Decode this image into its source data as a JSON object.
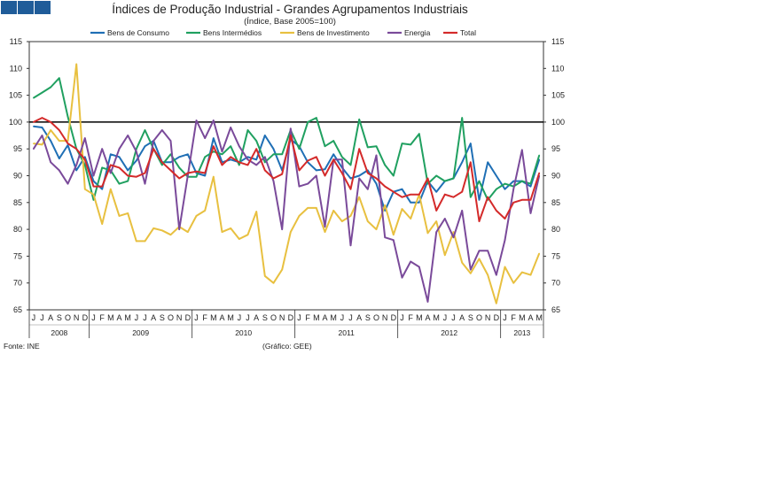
{
  "header": {
    "logo_blocks": [
      "logo-block-1",
      "logo-block-2",
      "logo-block-3"
    ],
    "logo_color": "#1f5c99"
  },
  "notes": {
    "source": "Fonte: INE",
    "graph_credit": "(Gráfico: GEE)"
  },
  "chart_data": {
    "type": "line",
    "title": "Índices de Produção Industrial - Grandes Agrupamentos Industriais",
    "subtitle": "(Índice, Base 2005=100)",
    "xlabel": "",
    "ylabel": "",
    "ylim": [
      65,
      115
    ],
    "yticks": [
      65,
      70,
      75,
      80,
      85,
      90,
      95,
      100,
      105,
      110,
      115
    ],
    "reference_line": 100,
    "legend_position": "top",
    "x": [
      "J",
      "J",
      "A",
      "S",
      "O",
      "N",
      "D",
      "J",
      "F",
      "M",
      "A",
      "M",
      "J",
      "J",
      "A",
      "S",
      "O",
      "N",
      "D",
      "J",
      "F",
      "M",
      "A",
      "M",
      "J",
      "J",
      "A",
      "S",
      "O",
      "N",
      "D",
      "J",
      "F",
      "M",
      "A",
      "M",
      "J",
      "J",
      "A",
      "S",
      "O",
      "N",
      "D",
      "J",
      "F",
      "M",
      "A",
      "M",
      "J",
      "J",
      "A",
      "S",
      "O",
      "N",
      "D",
      "J",
      "F",
      "M",
      "A",
      "M"
    ],
    "years": [
      {
        "label": "2008",
        "start": 0,
        "end": 6
      },
      {
        "label": "2009",
        "start": 7,
        "end": 18
      },
      {
        "label": "2010",
        "start": 19,
        "end": 30
      },
      {
        "label": "2011",
        "start": 31,
        "end": 42
      },
      {
        "label": "2012",
        "start": 43,
        "end": 54
      },
      {
        "label": "2013",
        "start": 55,
        "end": 59
      }
    ],
    "series": [
      {
        "name": "Bens de Consumo",
        "color": "#1f6fb5",
        "values": [
          99.2,
          99,
          96.5,
          93.2,
          95.7,
          91,
          93.5,
          89,
          87.5,
          94,
          93.5,
          91,
          92.8,
          95.5,
          96.5,
          92.5,
          92.5,
          93.5,
          94,
          90.5,
          90,
          97,
          92.5,
          93,
          92.5,
          93.5,
          93,
          97.5,
          95,
          91,
          96.8,
          95.5,
          92.5,
          91,
          91.2,
          94,
          91.5,
          89.5,
          90,
          91,
          88.5,
          83.5,
          87,
          87.5,
          85,
          85,
          89,
          87,
          89,
          89.5,
          92.5,
          96,
          85.5,
          92.5,
          90,
          87.5,
          89,
          89,
          88,
          93
        ]
      },
      {
        "name": "Bens Intermédios",
        "color": "#20a060",
        "values": [
          104.5,
          105.5,
          106.5,
          108.2,
          101,
          95,
          92,
          85.5,
          91.5,
          91,
          88.5,
          89,
          95,
          98.5,
          95,
          92,
          94,
          91.5,
          89.8,
          89.8,
          93.5,
          94.5,
          94,
          95.5,
          92,
          98.5,
          96.5,
          92.5,
          94,
          94,
          98.5,
          95,
          100,
          100.8,
          95.5,
          96.5,
          93.5,
          92,
          100.5,
          95.3,
          95.5,
          92,
          90,
          96,
          95.8,
          97.8,
          88.5,
          90,
          89,
          89.5,
          100.8,
          86,
          89,
          85.5,
          87.5,
          88.5,
          88,
          89,
          88.5,
          93.8
        ]
      },
      {
        "name": "Bens de Investimento",
        "color": "#e8c040",
        "values": [
          96,
          95.8,
          98.5,
          96.5,
          96.5,
          110.8,
          87.5,
          86.5,
          81,
          87.5,
          82.5,
          83,
          77.8,
          77.8,
          80.2,
          79.8,
          79,
          80.5,
          79.5,
          82.5,
          83.5,
          89.8,
          79.5,
          80.2,
          78.2,
          79,
          83.3,
          71.3,
          70,
          72.5,
          79.5,
          82.5,
          84,
          84,
          79.5,
          83.5,
          81.5,
          82.5,
          86,
          81.5,
          80,
          84.5,
          79,
          83.8,
          82,
          86.5,
          79.3,
          81.5,
          75.2,
          79.5,
          73.8,
          71.8,
          74.5,
          71.5,
          66.2,
          73,
          70,
          72,
          71.5,
          75.5
        ]
      },
      {
        "name": "Energia",
        "color": "#7a4a9a",
        "values": [
          95,
          97.5,
          92.5,
          91,
          88.5,
          92,
          97,
          90,
          95,
          90.5,
          95,
          97.5,
          94.5,
          88.5,
          96.5,
          98.5,
          96.5,
          80,
          90,
          100.3,
          97,
          100.3,
          94.5,
          99,
          95.5,
          93,
          92,
          93.5,
          89,
          80,
          98.8,
          88,
          88.5,
          90,
          80.5,
          93,
          93,
          77,
          89.5,
          87.5,
          93.8,
          78.5,
          78,
          71,
          74,
          73,
          66.5,
          79.5,
          82,
          78.5,
          83.5,
          72.5,
          76,
          76,
          71.5,
          78,
          87.5,
          94.8,
          83,
          90
        ]
      },
      {
        "name": "Total",
        "color": "#d42a2a",
        "values": [
          100,
          100.8,
          100,
          98.5,
          96,
          95,
          93,
          88,
          88,
          92,
          91.5,
          90,
          89.8,
          90.5,
          95,
          92.5,
          91,
          89.5,
          90.5,
          90.8,
          90.5,
          95.5,
          92,
          93.5,
          92.5,
          92,
          95,
          91,
          89.5,
          90.3,
          97.5,
          91,
          92.8,
          93.5,
          90,
          93,
          90.5,
          87.5,
          95,
          90.5,
          89.5,
          88,
          87,
          86,
          86.5,
          86.5,
          89.5,
          83.5,
          86.5,
          86,
          87,
          92.5,
          81.5,
          86,
          83.5,
          82,
          85,
          85.5,
          85.5,
          90.5
        ]
      }
    ]
  }
}
